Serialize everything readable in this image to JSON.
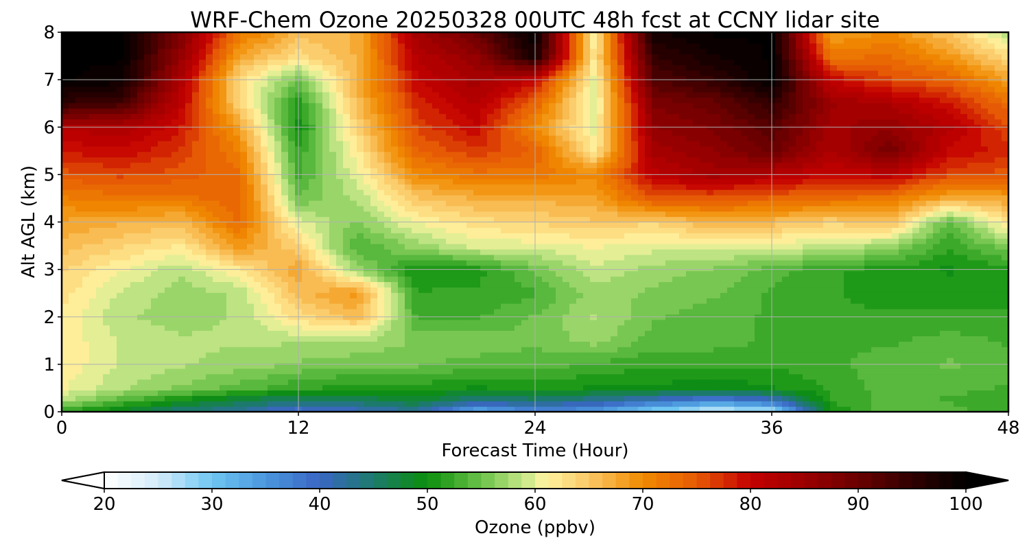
{
  "chart_data": {
    "type": "heatmap",
    "title": "WRF-Chem Ozone  20250328 00UTC 48h fcst at CCNY lidar site",
    "xlabel": "Forecast Time (Hour)",
    "ylabel": "Alt AGL (km)",
    "xlim": [
      0,
      48
    ],
    "ylim": [
      0,
      8
    ],
    "xticks": [
      0,
      12,
      24,
      36,
      48
    ],
    "yticks": [
      0,
      1,
      2,
      3,
      4,
      5,
      6,
      7,
      8
    ],
    "grid": true,
    "colorbar": {
      "label": "Ozone  (ppbv)",
      "min": 20,
      "max": 100,
      "ticks": [
        20,
        30,
        40,
        50,
        60,
        70,
        80,
        90,
        100
      ],
      "extend": "both",
      "colors": [
        {
          "v": 20,
          "c": "#ffffff"
        },
        {
          "v": 25,
          "c": "#d4ecfa"
        },
        {
          "v": 30,
          "c": "#6ec6f2"
        },
        {
          "v": 35,
          "c": "#4a97dd"
        },
        {
          "v": 40,
          "c": "#3a66c4"
        },
        {
          "v": 45,
          "c": "#1c7a6c"
        },
        {
          "v": 50,
          "c": "#0c8f0c"
        },
        {
          "v": 55,
          "c": "#6cc24a"
        },
        {
          "v": 59,
          "c": "#c8e88a"
        },
        {
          "v": 61,
          "c": "#fff3a0"
        },
        {
          "v": 65,
          "c": "#fac866"
        },
        {
          "v": 70,
          "c": "#f08a00"
        },
        {
          "v": 75,
          "c": "#e65a05"
        },
        {
          "v": 80,
          "c": "#c40000"
        },
        {
          "v": 85,
          "c": "#9c0000"
        },
        {
          "v": 90,
          "c": "#6a0000"
        },
        {
          "v": 95,
          "c": "#300000"
        },
        {
          "v": 100,
          "c": "#000000"
        }
      ]
    },
    "x": [
      0,
      3,
      6,
      9,
      12,
      15,
      18,
      21,
      24,
      27,
      30,
      33,
      36,
      39,
      42,
      45,
      48
    ],
    "y": [
      0,
      0.25,
      0.5,
      1,
      1.5,
      2,
      2.5,
      3,
      3.5,
      4,
      4.5,
      5,
      5.5,
      6,
      6.5,
      7,
      7.5,
      8
    ],
    "z": [
      [
        52,
        48,
        44,
        42,
        38,
        40,
        42,
        32,
        36,
        34,
        28,
        24,
        26,
        50,
        55,
        54,
        52
      ],
      [
        58,
        54,
        50,
        47,
        45,
        46,
        48,
        44,
        45,
        43,
        40,
        37,
        40,
        52,
        54,
        53,
        52
      ],
      [
        61,
        58,
        56,
        54,
        52,
        51,
        51,
        50,
        51,
        50,
        50,
        49,
        50,
        52,
        54,
        54,
        53
      ],
      [
        62,
        59,
        58,
        57,
        56,
        55,
        55,
        54,
        54,
        53,
        52,
        52,
        52,
        53,
        54,
        55,
        54
      ],
      [
        62,
        59,
        58,
        58,
        58,
        58,
        56,
        56,
        55,
        57,
        54,
        54,
        53,
        53,
        53,
        54,
        53
      ],
      [
        62,
        58,
        57,
        58,
        63,
        66,
        53,
        53,
        55,
        58,
        55,
        54,
        53,
        52,
        52,
        52,
        52
      ],
      [
        63,
        59,
        57,
        58,
        66,
        69,
        52,
        52,
        53,
        57,
        56,
        55,
        53,
        52,
        51,
        51,
        51
      ],
      [
        64,
        61,
        58,
        62,
        68,
        57,
        50,
        51,
        55,
        59,
        57,
        56,
        54,
        52,
        51,
        50,
        51
      ],
      [
        66,
        64,
        62,
        69,
        64,
        53,
        57,
        60,
        60,
        61,
        60,
        60,
        60,
        59,
        57,
        52,
        56
      ],
      [
        68,
        67,
        66,
        73,
        60,
        56,
        61,
        63,
        64,
        65,
        64,
        67,
        66,
        64,
        66,
        54,
        63
      ],
      [
        71,
        72,
        72,
        74,
        55,
        58,
        65,
        67,
        67,
        68,
        75,
        75,
        74,
        73,
        72,
        67,
        68
      ],
      [
        75,
        76,
        75,
        73,
        53,
        60,
        70,
        72,
        72,
        70,
        81,
        84,
        82,
        80,
        81,
        76,
        75
      ],
      [
        79,
        80,
        77,
        71,
        52,
        62,
        74,
        77,
        74,
        62,
        84,
        86,
        90,
        83,
        89,
        80,
        78
      ],
      [
        82,
        83,
        79,
        68,
        50,
        64,
        76,
        80,
        70,
        60,
        86,
        88,
        92,
        84,
        86,
        82,
        76
      ],
      [
        95,
        93,
        81,
        64,
        51,
        66,
        78,
        82,
        74,
        59,
        88,
        90,
        95,
        85,
        83,
        79,
        73
      ],
      [
        100,
        99,
        83,
        63,
        55,
        67,
        80,
        84,
        80,
        60,
        92,
        95,
        100,
        80,
        76,
        74,
        68
      ],
      [
        100,
        100,
        86,
        68,
        63,
        67,
        82,
        86,
        98,
        62,
        95,
        98,
        100,
        72,
        73,
        69,
        63
      ],
      [
        100,
        100,
        88,
        72,
        66,
        67,
        84,
        90,
        100,
        61,
        98,
        100,
        100,
        68,
        70,
        65,
        58
      ]
    ]
  }
}
